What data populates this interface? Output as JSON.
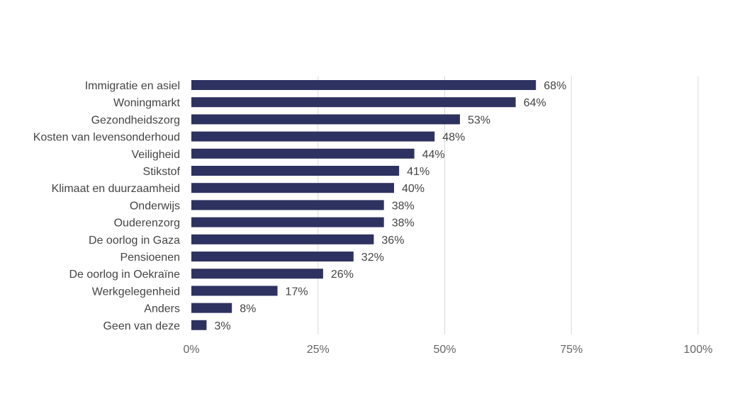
{
  "chart_data": {
    "type": "bar",
    "orientation": "horizontal",
    "title": "",
    "xlabel": "",
    "ylabel": "",
    "categories": [
      "Immigratie en asiel",
      "Woningmarkt",
      "Gezondheidszorg",
      "Kosten van levensonderhoud",
      "Veiligheid",
      "Stikstof",
      "Klimaat en duurzaamheid",
      "Onderwijs",
      "Ouderenzorg",
      "De oorlog in Gaza",
      "Pensioenen",
      "De oorlog in Oekraïne",
      "Werkgelegenheid",
      "Anders",
      "Geen van deze"
    ],
    "values": [
      68,
      64,
      53,
      48,
      44,
      41,
      40,
      38,
      38,
      36,
      32,
      26,
      17,
      8,
      3
    ],
    "value_labels": [
      "68%",
      "64%",
      "53%",
      "48%",
      "44%",
      "41%",
      "40%",
      "38%",
      "38%",
      "36%",
      "32%",
      "26%",
      "17%",
      "8%",
      "3%"
    ],
    "xlim": [
      0,
      100
    ],
    "ticks": [
      0,
      25,
      50,
      75,
      100
    ],
    "tick_labels": [
      "0%",
      "25%",
      "50%",
      "75%",
      "100%"
    ],
    "grid": "vertical",
    "bar_color": "#2e3260"
  }
}
